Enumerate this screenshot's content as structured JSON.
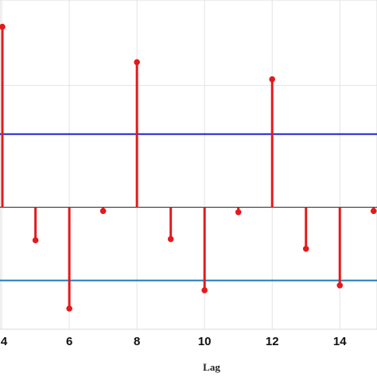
{
  "chart_data": {
    "type": "stem",
    "title": "",
    "xlabel": "Lag",
    "ylabel": "",
    "xlim": [
      3.95,
      15.1
    ],
    "ylim": [
      -1.0,
      1.7
    ],
    "grid": true,
    "x_ticks": [
      4,
      6,
      8,
      10,
      12,
      14
    ],
    "x_tick_labels": [
      "4",
      "6",
      "8",
      "10",
      "12",
      "14"
    ],
    "y_grid_values": [
      1.0,
      0.0
    ],
    "series": [
      {
        "x": [
          4,
          5,
          6,
          7,
          8,
          9,
          10,
          11,
          12,
          13,
          14,
          15
        ],
        "values": [
          1.48,
          -0.27,
          -0.83,
          -0.03,
          1.19,
          -0.26,
          -0.68,
          -0.04,
          1.05,
          -0.34,
          -0.64,
          -0.03
        ],
        "color": "#e31a1c"
      }
    ],
    "reference_lines": [
      {
        "value": 0.6,
        "color": "#1c1ccf"
      },
      {
        "value": -0.6,
        "color": "#1f7ab8"
      }
    ],
    "baseline": 0
  }
}
